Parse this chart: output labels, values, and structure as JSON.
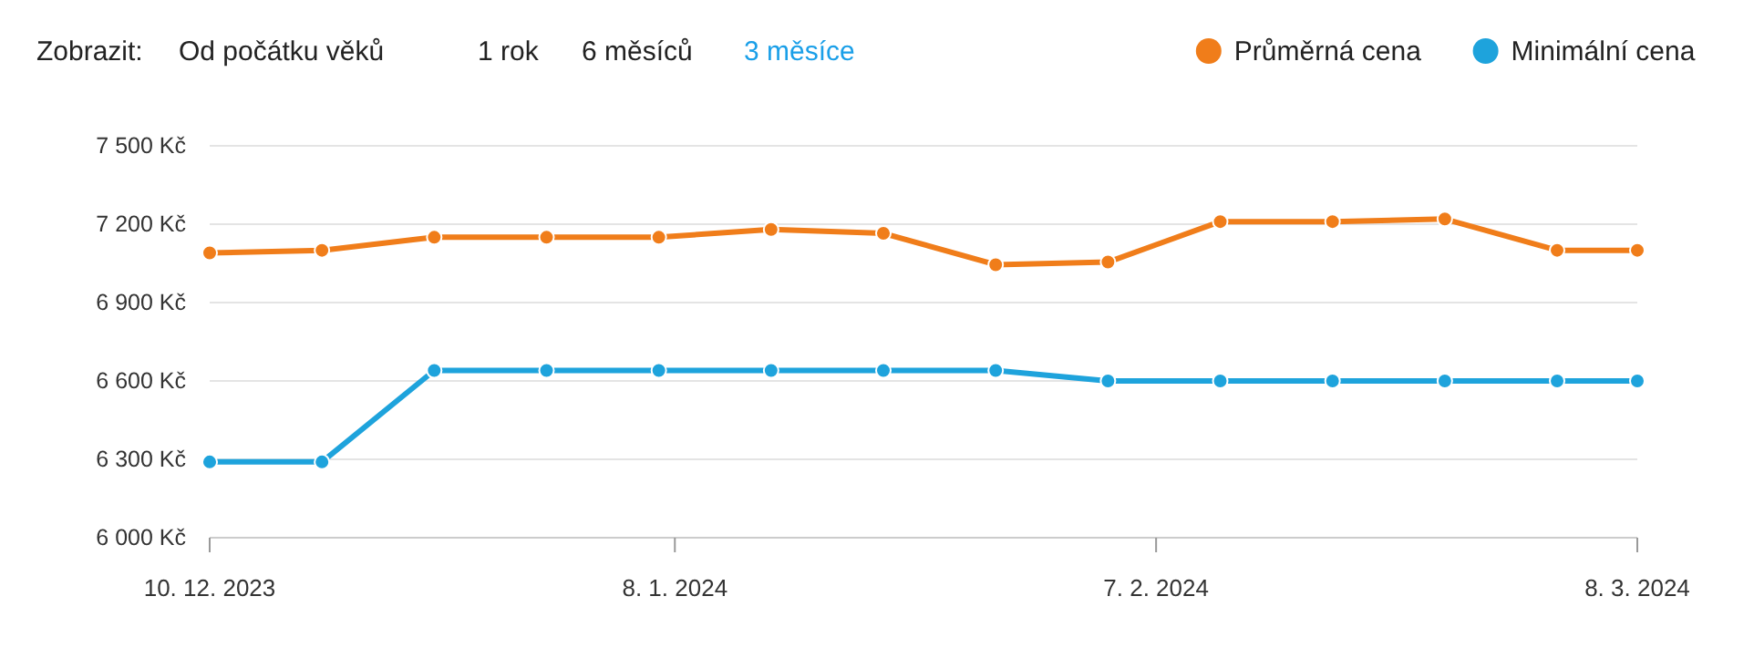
{
  "chart_data": {
    "type": "line",
    "annotations": [
      "Zobrazit:",
      "Od počátku věků",
      "1 rok",
      "6 měsíců",
      "3 měsíce"
    ],
    "x": [
      "2023-12-10",
      "2023-12-17",
      "2023-12-24",
      "2023-12-31",
      "2024-01-07",
      "2024-01-14",
      "2024-01-21",
      "2024-01-28",
      "2024-02-04",
      "2024-02-11",
      "2024-02-18",
      "2024-02-25",
      "2024-03-03",
      "2024-03-08"
    ],
    "series": [
      {
        "name": "Průměrná cena",
        "color": "#f07d1a",
        "values": [
          7090,
          7100,
          7150,
          7150,
          7150,
          7180,
          7165,
          7045,
          7055,
          7210,
          7210,
          7220,
          7100,
          7100
        ]
      },
      {
        "name": "Minimální cena",
        "color": "#1ea3dc",
        "values": [
          6290,
          6290,
          6640,
          6640,
          6640,
          6640,
          6640,
          6640,
          6600,
          6600,
          6600,
          6600,
          6600,
          6600
        ]
      }
    ],
    "xlim": [
      "2023-12-10",
      "2024-03-08"
    ],
    "xticks": [
      {
        "value": "2023-12-10",
        "label": "10. 12. 2023"
      },
      {
        "value": "2024-01-08",
        "label": "8. 1. 2024"
      },
      {
        "value": "2024-02-07",
        "label": "7. 2. 2024"
      },
      {
        "value": "2024-03-08",
        "label": "8. 3. 2024"
      }
    ],
    "ylim": [
      6000,
      7500
    ],
    "yticks": [
      {
        "value": 6000,
        "label": "6 000 Kč"
      },
      {
        "value": 6300,
        "label": "6 300 Kč"
      },
      {
        "value": 6600,
        "label": "6 600 Kč"
      },
      {
        "value": 6900,
        "label": "6 900 Kč"
      },
      {
        "value": 7200,
        "label": "7 200 Kč"
      },
      {
        "value": 7500,
        "label": "7 500 Kč"
      }
    ],
    "grid": "y",
    "legend": "top right",
    "marker": "circle",
    "line_style": "solid"
  }
}
